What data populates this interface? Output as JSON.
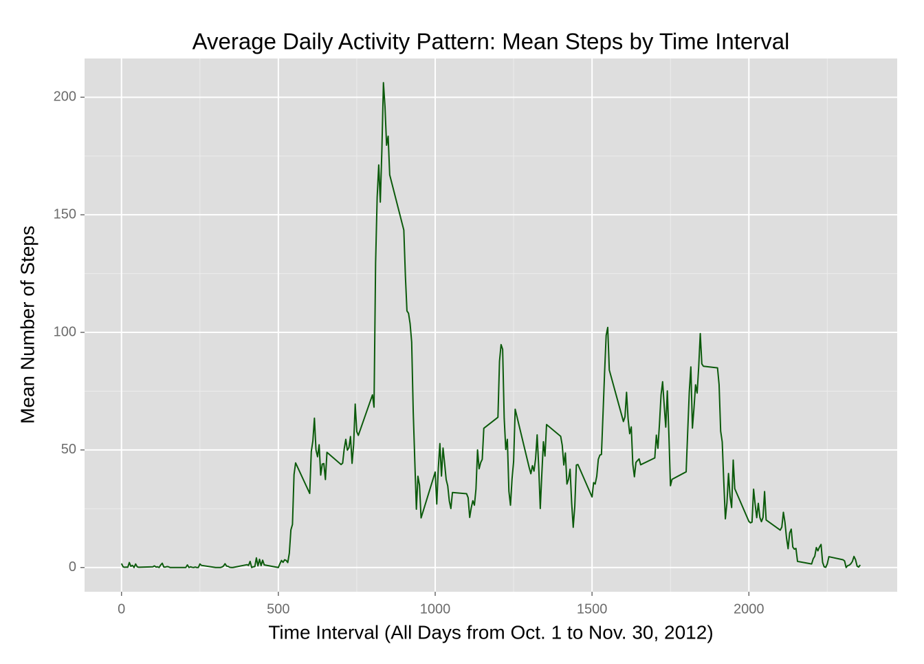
{
  "chart_data": {
    "type": "line",
    "title": "Average Daily Activity Pattern: Mean Steps by Time Interval",
    "x_label": "Time Interval (All Days from Oct. 1 to Nov. 30, 2012)",
    "y_label": "Mean Number of Steps",
    "x": [
      0,
      5,
      10,
      15,
      20,
      25,
      30,
      35,
      40,
      45,
      50,
      55,
      100,
      105,
      110,
      115,
      120,
      125,
      130,
      135,
      140,
      145,
      150,
      155,
      200,
      205,
      210,
      215,
      220,
      225,
      230,
      235,
      240,
      245,
      250,
      255,
      300,
      305,
      310,
      315,
      320,
      325,
      330,
      335,
      340,
      345,
      350,
      355,
      400,
      405,
      410,
      415,
      420,
      425,
      430,
      435,
      440,
      445,
      450,
      455,
      500,
      505,
      510,
      515,
      520,
      525,
      530,
      535,
      540,
      545,
      550,
      555,
      600,
      605,
      610,
      615,
      620,
      625,
      630,
      635,
      640,
      645,
      650,
      655,
      700,
      705,
      710,
      715,
      720,
      725,
      730,
      735,
      740,
      745,
      750,
      755,
      800,
      805,
      810,
      815,
      820,
      825,
      830,
      835,
      840,
      845,
      850,
      855,
      900,
      905,
      910,
      915,
      920,
      925,
      930,
      935,
      940,
      945,
      950,
      955,
      1000,
      1005,
      1010,
      1015,
      1020,
      1025,
      1030,
      1035,
      1040,
      1045,
      1050,
      1055,
      1100,
      1105,
      1110,
      1115,
      1120,
      1125,
      1130,
      1135,
      1140,
      1145,
      1150,
      1155,
      1200,
      1205,
      1210,
      1215,
      1220,
      1225,
      1230,
      1235,
      1240,
      1245,
      1250,
      1255,
      1300,
      1305,
      1310,
      1315,
      1320,
      1325,
      1330,
      1335,
      1340,
      1345,
      1350,
      1355,
      1400,
      1405,
      1410,
      1415,
      1420,
      1425,
      1430,
      1435,
      1440,
      1445,
      1450,
      1455,
      1500,
      1505,
      1510,
      1515,
      1520,
      1525,
      1530,
      1535,
      1540,
      1545,
      1550,
      1555,
      1600,
      1605,
      1610,
      1615,
      1620,
      1625,
      1630,
      1635,
      1640,
      1645,
      1650,
      1655,
      1700,
      1705,
      1710,
      1715,
      1720,
      1725,
      1730,
      1735,
      1740,
      1745,
      1750,
      1755,
      1800,
      1805,
      1810,
      1815,
      1820,
      1825,
      1830,
      1835,
      1840,
      1845,
      1850,
      1855,
      1900,
      1905,
      1910,
      1915,
      1920,
      1925,
      1930,
      1935,
      1940,
      1945,
      1950,
      1955,
      2000,
      2005,
      2010,
      2015,
      2020,
      2025,
      2030,
      2035,
      2040,
      2045,
      2050,
      2055,
      2100,
      2105,
      2110,
      2115,
      2120,
      2125,
      2130,
      2135,
      2140,
      2145,
      2150,
      2155,
      2200,
      2205,
      2210,
      2215,
      2220,
      2225,
      2230,
      2235,
      2240,
      2245,
      2250,
      2255,
      2300,
      2305,
      2310,
      2315,
      2320,
      2325,
      2330,
      2335,
      2340,
      2345,
      2350,
      2355
    ],
    "series": [
      {
        "name": "Mean steps",
        "color": "#0b5a0b",
        "values": [
          1.7,
          0.3,
          0.1,
          0.2,
          0.1,
          2.1,
          0.5,
          0.9,
          0,
          1.5,
          0.3,
          0.1,
          0.3,
          0.7,
          0.2,
          0.3,
          0,
          1.1,
          1.8,
          0.2,
          0.2,
          0.4,
          0.3,
          0,
          0,
          0,
          1.1,
          0,
          0.3,
          0.1,
          0,
          0.2,
          0,
          0,
          1.5,
          0.9,
          0,
          0,
          0,
          0,
          0.2,
          0.6,
          1.6,
          0.6,
          0.5,
          0.1,
          0,
          0,
          1.2,
          0.9,
          2.6,
          0,
          0.3,
          0.4,
          4.1,
          0.7,
          3.5,
          0.8,
          3.1,
          1.1,
          0,
          1.6,
          3,
          2.2,
          3.3,
          3,
          2.1,
          6.1,
          16,
          18.3,
          39.5,
          44.5,
          31.5,
          49.3,
          53.8,
          63.5,
          50,
          47.1,
          52.2,
          39.3,
          44,
          44.2,
          37.4,
          49,
          43.8,
          44.4,
          50.5,
          54.5,
          49.9,
          51,
          55.7,
          44.3,
          52.3,
          69.5,
          57.8,
          56.2,
          73.4,
          68.2,
          129.4,
          157.5,
          171.2,
          155.4,
          177.3,
          206.2,
          195.9,
          179.6,
          183.4,
          167,
          143.5,
          124,
          109.1,
          108.1,
          103.7,
          95.9,
          66.2,
          45.2,
          24.8,
          38.8,
          35,
          21.1,
          40.6,
          27,
          42.4,
          52.7,
          38.9,
          50.8,
          44.3,
          37.4,
          34.7,
          28.3,
          25.1,
          31.9,
          31.4,
          29.7,
          21.3,
          25.5,
          28.4,
          26.5,
          33.4,
          50,
          42,
          44.6,
          46,
          59.2,
          63.9,
          87.7,
          94.8,
          92.8,
          63.4,
          50.2,
          54.5,
          32.4,
          26.5,
          37.7,
          45.1,
          67.3,
          42.3,
          39.9,
          43.3,
          41,
          46.2,
          56.4,
          42.8,
          25.1,
          40,
          53.5,
          47.4,
          60.8,
          55.8,
          52,
          43.6,
          48.7,
          35.5,
          37.5,
          41.8,
          27.5,
          17.1,
          26.1,
          43.6,
          43.8,
          30,
          36.1,
          35.5,
          38.8,
          46,
          47.8,
          48.1,
          65.3,
          82.9,
          98.7,
          102.1,
          84,
          62.1,
          64.1,
          74.5,
          63.2,
          56.9,
          59.8,
          43.9,
          38.6,
          44.7,
          45.5,
          46.2,
          43.7,
          46.6,
          56.3,
          50.7,
          61.2,
          73.4,
          79,
          68.9,
          59.7,
          75.1,
          56.5,
          34.8,
          37.5,
          40.7,
          58,
          74.7,
          85.3,
          59.3,
          67.8,
          77.7,
          74.2,
          85.3,
          99.5,
          86.6,
          85.6,
          84.9,
          77.8,
          58,
          53.4,
          36.3,
          20.7,
          27.4,
          40,
          30.2,
          25.5,
          45.7,
          33.5,
          19.6,
          19,
          19.3,
          33.3,
          26.8,
          21.2,
          27.3,
          21.3,
          19.5,
          21.3,
          32.3,
          20.2,
          15.9,
          17.2,
          23.5,
          19.2,
          12.5,
          8,
          14.7,
          16.3,
          8.7,
          7.8,
          8.1,
          2.6,
          1.5,
          3.7,
          4.8,
          8.5,
          7.1,
          8.7,
          9.8,
          2.2,
          0.3,
          0.1,
          1.6,
          4.6,
          3.3,
          2.8,
          0,
          0.8,
          1,
          1.6,
          2.6,
          4.7,
          3.3,
          0.6,
          0.2,
          1.1
        ]
      }
    ],
    "xlim": [
      -117.75,
      2472.75
    ],
    "ylim": [
      -10.31,
      216.48
    ],
    "xticks": [
      0,
      500,
      1000,
      1500,
      2000
    ],
    "yticks": [
      0,
      50,
      100,
      150,
      200
    ],
    "grid": true,
    "panel_color": "#dedede"
  }
}
